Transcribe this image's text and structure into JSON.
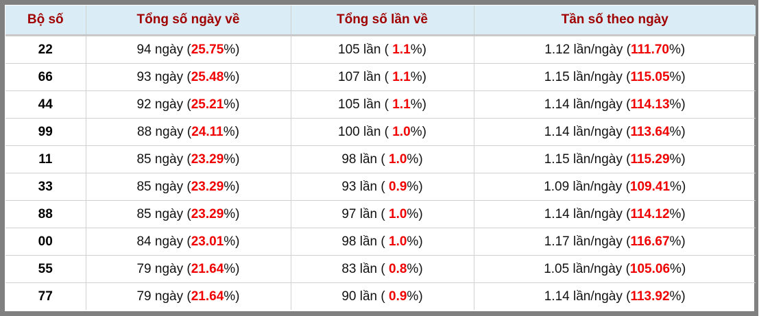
{
  "headers": [
    "Bộ số",
    "Tổng số ngày về",
    "Tổng số lần về",
    "Tần số theo ngày"
  ],
  "rows": [
    {
      "bo_so": "22",
      "ngay": "94",
      "ngay_pct": "25.75",
      "lan": "105",
      "lan_pct": "1.1",
      "tan_so": "1.12",
      "tan_so_pct": "111.70"
    },
    {
      "bo_so": "66",
      "ngay": "93",
      "ngay_pct": "25.48",
      "lan": "107",
      "lan_pct": "1.1",
      "tan_so": "1.15",
      "tan_so_pct": "115.05"
    },
    {
      "bo_so": "44",
      "ngay": "92",
      "ngay_pct": "25.21",
      "lan": "105",
      "lan_pct": "1.1",
      "tan_so": "1.14",
      "tan_so_pct": "114.13"
    },
    {
      "bo_so": "99",
      "ngay": "88",
      "ngay_pct": "24.11",
      "lan": "100",
      "lan_pct": "1.0",
      "tan_so": "1.14",
      "tan_so_pct": "113.64"
    },
    {
      "bo_so": "11",
      "ngay": "85",
      "ngay_pct": "23.29",
      "lan": "98",
      "lan_pct": "1.0",
      "tan_so": "1.15",
      "tan_so_pct": "115.29"
    },
    {
      "bo_so": "33",
      "ngay": "85",
      "ngay_pct": "23.29",
      "lan": "93",
      "lan_pct": "0.9",
      "tan_so": "1.09",
      "tan_so_pct": "109.41"
    },
    {
      "bo_so": "88",
      "ngay": "85",
      "ngay_pct": "23.29",
      "lan": "97",
      "lan_pct": "1.0",
      "tan_so": "1.14",
      "tan_so_pct": "114.12"
    },
    {
      "bo_so": "00",
      "ngay": "84",
      "ngay_pct": "23.01",
      "lan": "98",
      "lan_pct": "1.0",
      "tan_so": "1.17",
      "tan_so_pct": "116.67"
    },
    {
      "bo_so": "55",
      "ngay": "79",
      "ngay_pct": "21.64",
      "lan": "83",
      "lan_pct": "0.8",
      "tan_so": "1.05",
      "tan_so_pct": "105.06"
    },
    {
      "bo_so": "77",
      "ngay": "79",
      "ngay_pct": "21.64",
      "lan": "90",
      "lan_pct": "0.9",
      "tan_so": "1.14",
      "tan_so_pct": "113.92"
    }
  ],
  "units": {
    "ngay": " ngày (",
    "lan": " lần ( ",
    "tan_so": " lần/ngày (",
    "pct_close": "%)"
  },
  "colors": {
    "header_bg": "#daedf6",
    "header_text": "#a00000",
    "highlight": "#f00000",
    "frame": "#808080"
  }
}
